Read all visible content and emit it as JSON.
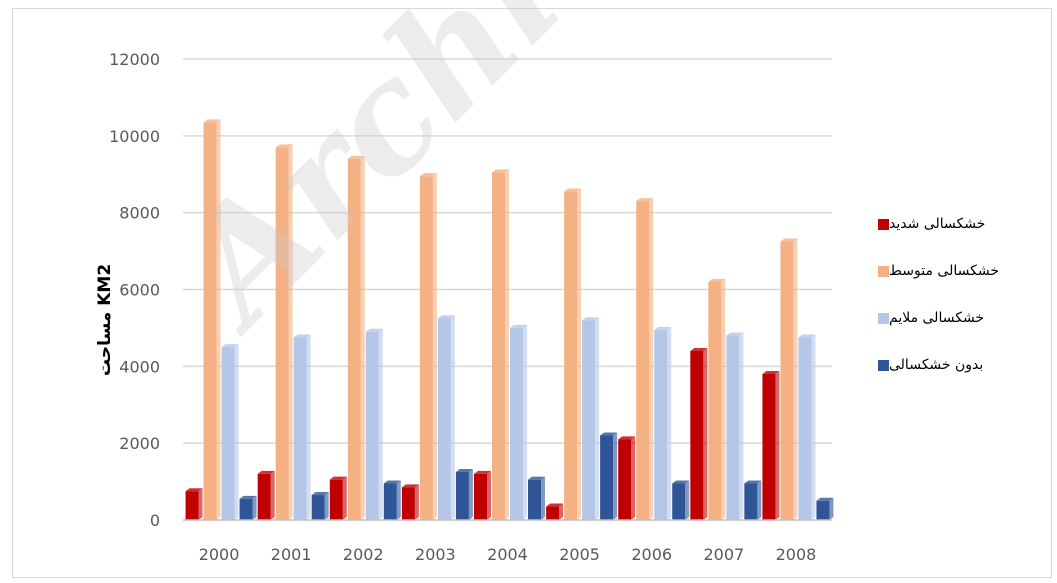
{
  "chart_data": {
    "type": "bar",
    "categories": [
      "2000",
      "2001",
      "2002",
      "2003",
      "2004",
      "2005",
      "2006",
      "2007",
      "2008"
    ],
    "series": [
      {
        "name": "خشکسالی شدید",
        "color": "#c00000",
        "values": [
          750,
          1200,
          1050,
          850,
          1200,
          350,
          2100,
          4400,
          3800
        ]
      },
      {
        "name": "خشکسالی متوسط",
        "color": "#f4b183",
        "values": [
          10350,
          9700,
          9400,
          8950,
          9050,
          8550,
          8300,
          6200,
          7250
        ]
      },
      {
        "name": "خشکسالی ملایم",
        "color": "#b4c7e7",
        "values": [
          4500,
          4750,
          4900,
          5250,
          5000,
          5200,
          4950,
          4800,
          4750
        ]
      },
      {
        "name": "بدون خشکسالی",
        "color": "#2f5597",
        "values": [
          550,
          650,
          950,
          1250,
          1050,
          2200,
          950,
          950,
          500
        ]
      }
    ],
    "ylabel": "مساحت KM2",
    "ylim": [
      0,
      12000
    ],
    "yticks": [
      "0",
      "2000",
      "4000",
      "6000",
      "8000",
      "10000",
      "12000"
    ],
    "grid": true,
    "legend_position": "right"
  },
  "watermark": "Archive"
}
